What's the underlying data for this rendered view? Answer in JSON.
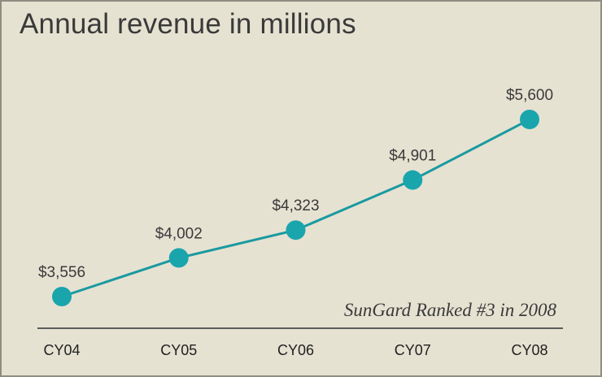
{
  "chart_data": {
    "type": "line",
    "title": "Annual revenue in millions",
    "annotation": "SunGard Ranked #3 in 2008",
    "categories": [
      "CY04",
      "CY05",
      "CY06",
      "CY07",
      "CY08"
    ],
    "values": [
      3556,
      4002,
      4323,
      4901,
      5600
    ],
    "data_labels": [
      "$3,556",
      "$4,002",
      "$4,323",
      "$4,901",
      "$5,600"
    ],
    "xlabel": "",
    "ylabel": "",
    "grid": false,
    "legend": "none",
    "colors": {
      "line": "#1a9aa0",
      "marker": "#1aa5ad",
      "background": "#e6e2d2",
      "axis": "#5b5b5b"
    }
  }
}
